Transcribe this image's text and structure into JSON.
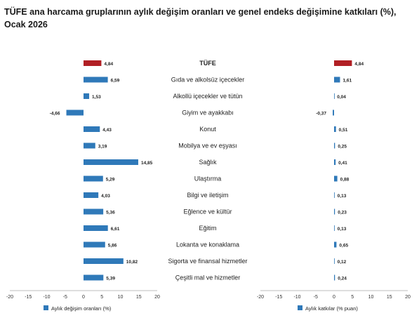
{
  "title": "TÜFE ana harcama gruplarının aylık değişim oranları ve genel endeks değişimine katkıları (%), Ocak 2026",
  "colors": {
    "highlight": "#b11f24",
    "bar": "#2f79b9",
    "axis": "#a6a6a6"
  },
  "chart_data": [
    {
      "type": "bar",
      "orientation": "horizontal",
      "categories": [
        "TÜFE",
        "Gıda ve alkolsüz içecekler",
        "Alkollü içecekler ve tütün",
        "Giyim ve ayakkabı",
        "Konut",
        "Mobilya ve ev eşyası",
        "Sağlık",
        "Ulaştırma",
        "Bilgi ve iletişim",
        "Eğlence ve kültür",
        "Eğitim",
        "Lokanta ve konaklama",
        "Sigorta ve finansal hizmetler",
        "Çeşitli mal ve hizmetler"
      ],
      "values": [
        4.84,
        6.59,
        1.53,
        -4.66,
        4.43,
        3.19,
        14.85,
        5.29,
        4.03,
        5.36,
        6.61,
        5.86,
        10.82,
        5.39
      ],
      "value_labels": [
        "4,84",
        "6,59",
        "1,53",
        "-4,66",
        "4,43",
        "3,19",
        "14,85",
        "5,29",
        "4,03",
        "5,36",
        "6,61",
        "5,86",
        "10,82",
        "5,39"
      ],
      "series_name": "Aylık değişim oranları (%)",
      "xlim": [
        -20,
        20
      ],
      "xticks": [
        "-20",
        "-15",
        "-10",
        "-5",
        "0",
        "5",
        "10",
        "15",
        "20"
      ],
      "legend": "bottom-left",
      "grid": false
    },
    {
      "type": "bar",
      "orientation": "horizontal",
      "categories": [
        "TÜFE",
        "Gıda ve alkolsüz içecekler",
        "Alkollü içecekler ve tütün",
        "Giyim ve ayakkabı",
        "Konut",
        "Mobilya ve ev eşyası",
        "Sağlık",
        "Ulaştırma",
        "Bilgi ve iletişim",
        "Eğlence ve kültür",
        "Eğitim",
        "Lokanta ve konaklama",
        "Sigorta ve finansal hizmetler",
        "Çeşitli mal ve hizmetler"
      ],
      "values": [
        4.84,
        1.61,
        0.04,
        -0.37,
        0.51,
        0.25,
        0.41,
        0.88,
        0.13,
        0.23,
        0.13,
        0.65,
        0.12,
        0.24
      ],
      "value_labels": [
        "4,84",
        "1,61",
        "0,04",
        "-0,37",
        "0,51",
        "0,25",
        "0,41",
        "0,88",
        "0,13",
        "0,23",
        "0,13",
        "0,65",
        "0,12",
        "0,24"
      ],
      "series_name": "Aylık katkılar (% puan)",
      "xlim": [
        -20,
        20
      ],
      "xticks": [
        "-20",
        "-15",
        "-10",
        "-5",
        "0",
        "5",
        "10",
        "15",
        "20"
      ],
      "legend": "bottom-left",
      "grid": false
    }
  ]
}
